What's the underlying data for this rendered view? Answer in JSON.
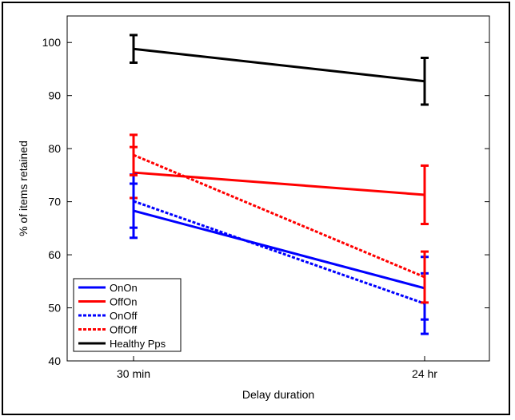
{
  "chart_data": {
    "type": "line",
    "xlabel": "Delay duration",
    "ylabel": "% of items retained",
    "categories": [
      "30 min",
      "24 hr"
    ],
    "ylim": [
      40,
      105
    ],
    "yticks": [
      40,
      50,
      60,
      70,
      80,
      90,
      100
    ],
    "grid": false,
    "legend_position": "bottom-left",
    "series": [
      {
        "name": "OnOn",
        "color": "#0000ff",
        "style": "solid",
        "values": [
          68.3,
          53.7
        ],
        "errors": [
          5.1,
          5.9
        ]
      },
      {
        "name": "OffOn",
        "color": "#ff0000",
        "style": "solid",
        "values": [
          75.5,
          71.3
        ],
        "errors": [
          4.8,
          5.5
        ]
      },
      {
        "name": "OnOff",
        "color": "#0000ff",
        "style": "dotted",
        "values": [
          70.1,
          50.8
        ],
        "errors": [
          5.0,
          5.7
        ]
      },
      {
        "name": "OffOff",
        "color": "#ff0000",
        "style": "dotted",
        "values": [
          78.8,
          55.8
        ],
        "errors": [
          3.8,
          4.8
        ]
      },
      {
        "name": "Healthy Pps",
        "color": "#000000",
        "style": "solid",
        "values": [
          98.8,
          92.7
        ],
        "errors": [
          2.6,
          4.4
        ]
      }
    ]
  }
}
